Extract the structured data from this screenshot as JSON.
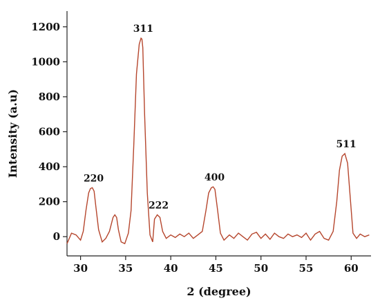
{
  "chart_data": {
    "type": "line",
    "title": "",
    "xlabel": "2 (degree)",
    "ylabel": "Intensity (a.u)",
    "xlim": [
      28.5,
      62.2
    ],
    "ylim": [
      -110,
      1290
    ],
    "x_ticks": [
      30,
      35,
      40,
      45,
      50,
      55,
      60
    ],
    "y_ticks": [
      0,
      200,
      400,
      600,
      800,
      1000,
      1200
    ],
    "grid": false,
    "line_color": "#b5452c",
    "peaks": [
      {
        "label": "220",
        "x": 31.3,
        "y": 280
      },
      {
        "label": "311",
        "x": 36.8,
        "y": 1135
      },
      {
        "label": "222",
        "x": 38.5,
        "y": 125
      },
      {
        "label": "400",
        "x": 44.7,
        "y": 285
      },
      {
        "label": "511",
        "x": 59.3,
        "y": 475
      }
    ],
    "series": [
      {
        "x": [
          28.5,
          29.0,
          29.5,
          30.0,
          30.3,
          30.6,
          30.9,
          31.1,
          31.3,
          31.5,
          31.7,
          32.0,
          32.4,
          32.8,
          33.2,
          33.6,
          33.8,
          34.0,
          34.2,
          34.5,
          34.9,
          35.3,
          35.6,
          35.9,
          36.2,
          36.5,
          36.7,
          36.8,
          36.9,
          37.1,
          37.4,
          37.7,
          38.0,
          38.2,
          38.5,
          38.8,
          39.1,
          39.5,
          40.0,
          40.5,
          41.0,
          41.5,
          42.0,
          42.5,
          43.0,
          43.5,
          43.9,
          44.2,
          44.5,
          44.7,
          44.9,
          45.2,
          45.5,
          45.9,
          46.5,
          47.0,
          47.5,
          48.0,
          48.5,
          49.0,
          49.5,
          50.0,
          50.5,
          51.0,
          51.5,
          52.0,
          52.5,
          53.0,
          53.5,
          54.0,
          54.5,
          55.0,
          55.5,
          56.0,
          56.5,
          57.0,
          57.5,
          58.0,
          58.4,
          58.7,
          59.0,
          59.3,
          59.6,
          59.9,
          60.2,
          60.6,
          61.0,
          61.5,
          62.0
        ],
        "y": [
          -40,
          20,
          10,
          -20,
          30,
          150,
          250,
          275,
          280,
          260,
          170,
          40,
          -30,
          -10,
          30,
          110,
          125,
          110,
          40,
          -30,
          -40,
          20,
          150,
          520,
          930,
          1100,
          1135,
          1130,
          1080,
          700,
          250,
          10,
          -30,
          100,
          125,
          110,
          30,
          -10,
          10,
          -5,
          15,
          0,
          20,
          -10,
          10,
          30,
          150,
          250,
          280,
          285,
          270,
          150,
          20,
          -20,
          10,
          -10,
          20,
          0,
          -20,
          15,
          25,
          -10,
          15,
          -15,
          20,
          0,
          -10,
          15,
          0,
          10,
          -5,
          20,
          -20,
          15,
          30,
          -10,
          -20,
          30,
          200,
          380,
          460,
          475,
          420,
          220,
          20,
          -10,
          15,
          0,
          10
        ]
      }
    ]
  }
}
